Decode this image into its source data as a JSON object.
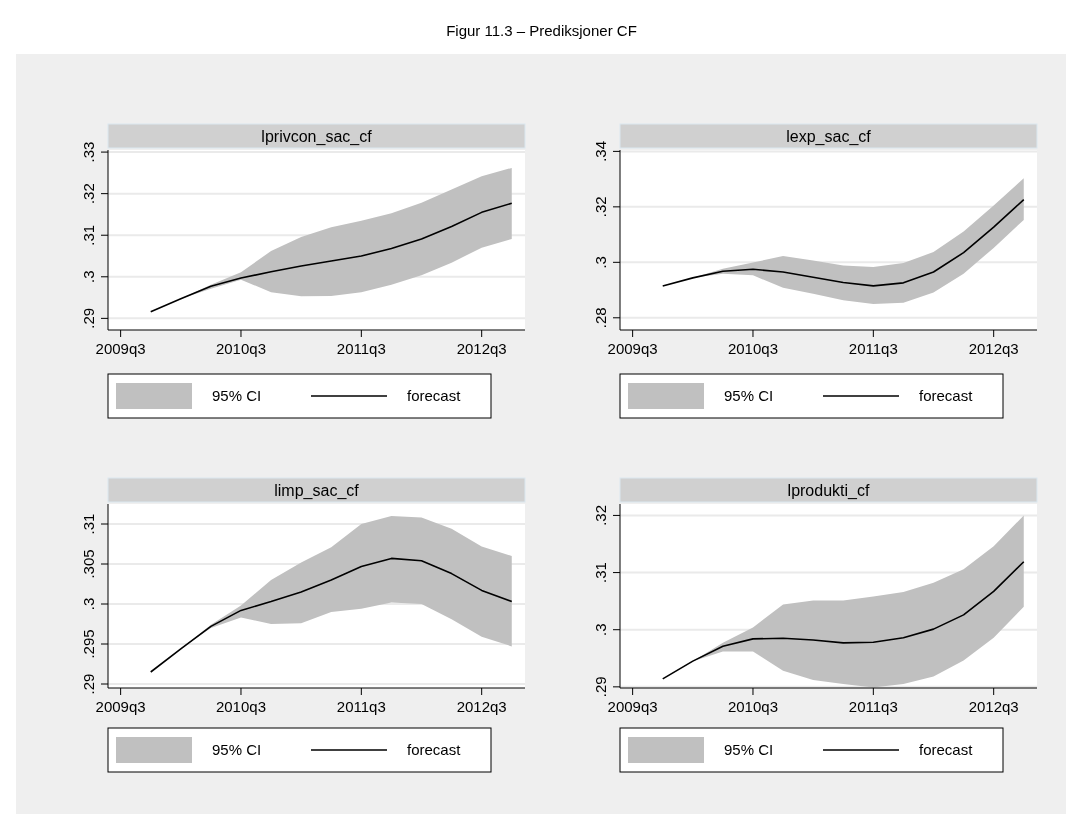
{
  "chart_data": [
    {
      "type": "line",
      "title": "lprivcon_sac_cf",
      "annotations": [
        "Figur 11.3 – Prediksjoner CF",
        "95% CI"
      ],
      "categories": [
        "2009q3",
        null,
        null,
        null,
        "2010q3",
        null,
        null,
        null,
        "2011q3",
        null,
        null,
        null,
        "2012q3",
        null
      ],
      "grid": "y",
      "legend": "bottom",
      "ylim": [
        0.2872,
        0.3305
      ],
      "yticks": [
        {
          "value": 0.29,
          "label": ".29"
        },
        {
          "value": 0.3,
          "label": ".3"
        },
        {
          "value": 0.31,
          "label": ".31"
        },
        {
          "value": 0.32,
          "label": ".32"
        },
        {
          "value": 0.33,
          "label": ".33"
        }
      ],
      "series": [
        {
          "name": "forecast",
          "color": "#000000",
          "values": [
            null,
            0.2916,
            0.2947,
            0.2977,
            0.2997,
            0.3012,
            0.3026,
            0.3038,
            0.305,
            0.3068,
            0.3091,
            0.3121,
            0.3155,
            0.3177
          ],
          "upper": [
            null,
            0.2916,
            0.2947,
            0.2981,
            0.3011,
            0.3062,
            0.3096,
            0.3119,
            0.3135,
            0.3153,
            0.3178,
            0.321,
            0.3242,
            0.3262
          ],
          "lower": [
            null,
            0.2916,
            0.2947,
            0.2971,
            0.2993,
            0.2963,
            0.2953,
            0.2954,
            0.2963,
            0.2981,
            0.3004,
            0.3034,
            0.307,
            0.3091
          ]
        }
      ]
    },
    {
      "type": "line",
      "title": "lexp_sac_cf",
      "annotations": [
        "95% CI"
      ],
      "categories": [
        "2009q3",
        null,
        null,
        null,
        "2010q3",
        null,
        null,
        null,
        "2011q3",
        null,
        null,
        null,
        "2012q3",
        null
      ],
      "grid": "y",
      "legend": "bottom",
      "ylim": [
        0.2756,
        0.3405
      ],
      "yticks": [
        {
          "value": 0.28,
          "label": ".28"
        },
        {
          "value": 0.3,
          "label": ".3"
        },
        {
          "value": 0.32,
          "label": ".32"
        },
        {
          "value": 0.34,
          "label": ".34"
        }
      ],
      "series": [
        {
          "name": "forecast",
          "color": "#000000",
          "values": [
            null,
            0.2915,
            0.2944,
            0.2968,
            0.2975,
            0.2965,
            0.2946,
            0.2927,
            0.2915,
            0.2926,
            0.2965,
            0.3035,
            0.3127,
            0.3226
          ],
          "upper": [
            null,
            0.2915,
            0.2944,
            0.2977,
            0.2999,
            0.3023,
            0.3007,
            0.2989,
            0.2983,
            0.2998,
            0.3037,
            0.3111,
            0.3205,
            0.3303
          ],
          "lower": [
            null,
            0.2915,
            0.2944,
            0.2959,
            0.2953,
            0.2908,
            0.2887,
            0.2863,
            0.285,
            0.2854,
            0.2891,
            0.2959,
            0.3052,
            0.3153
          ]
        }
      ]
    },
    {
      "type": "line",
      "title": "limp_sac_cf",
      "annotations": [
        "95% CI"
      ],
      "categories": [
        "2009q3",
        null,
        null,
        null,
        "2010q3",
        null,
        null,
        null,
        "2011q3",
        null,
        null,
        null,
        "2012q3",
        null
      ],
      "grid": "y",
      "legend": "bottom",
      "ylim": [
        0.2895,
        0.3125
      ],
      "yticks": [
        {
          "value": 0.29,
          "label": ".29"
        },
        {
          "value": 0.295,
          "label": ".295"
        },
        {
          "value": 0.3,
          "label": ".3"
        },
        {
          "value": 0.305,
          "label": ".305"
        },
        {
          "value": 0.31,
          "label": ".31"
        }
      ],
      "series": [
        {
          "name": "forecast",
          "color": "#000000",
          "values": [
            null,
            0.2915,
            0.2944,
            0.2972,
            0.2992,
            0.3003,
            0.3015,
            0.303,
            0.3047,
            0.3057,
            0.3054,
            0.3038,
            0.3017,
            0.3003
          ],
          "upper": [
            null,
            0.2915,
            0.2944,
            0.2974,
            0.2998,
            0.303,
            0.3052,
            0.3071,
            0.31,
            0.311,
            0.3108,
            0.3094,
            0.3072,
            0.306
          ],
          "lower": [
            null,
            0.2915,
            0.2944,
            0.297,
            0.2983,
            0.2975,
            0.2976,
            0.299,
            0.2994,
            0.3002,
            0.3,
            0.2981,
            0.2959,
            0.2947
          ]
        }
      ]
    },
    {
      "type": "line",
      "title": "lprodukti_cf",
      "annotations": [
        "95% CI"
      ],
      "categories": [
        "2009q3",
        null,
        null,
        null,
        "2010q3",
        null,
        null,
        null,
        "2011q3",
        null,
        null,
        null,
        "2012q3",
        null
      ],
      "grid": "y",
      "legend": "bottom",
      "ylim": [
        0.2898,
        0.322
      ],
      "yticks": [
        {
          "value": 0.29,
          "label": ".29"
        },
        {
          "value": 0.3,
          "label": ".3"
        },
        {
          "value": 0.31,
          "label": ".31"
        },
        {
          "value": 0.32,
          "label": ".32"
        }
      ],
      "series": [
        {
          "name": "forecast",
          "color": "#000000",
          "values": [
            null,
            0.2914,
            0.2945,
            0.2971,
            0.2984,
            0.2985,
            0.2982,
            0.2977,
            0.2978,
            0.2986,
            0.3001,
            0.3026,
            0.3067,
            0.3119
          ],
          "upper": [
            null,
            0.2914,
            0.2945,
            0.2977,
            0.3004,
            0.3044,
            0.3051,
            0.3051,
            0.3058,
            0.3066,
            0.3082,
            0.3106,
            0.3146,
            0.32
          ],
          "lower": [
            null,
            0.2914,
            0.2945,
            0.2962,
            0.2962,
            0.2928,
            0.2912,
            0.2905,
            0.2899,
            0.2905,
            0.2918,
            0.2946,
            0.2986,
            0.304
          ]
        }
      ]
    }
  ]
}
